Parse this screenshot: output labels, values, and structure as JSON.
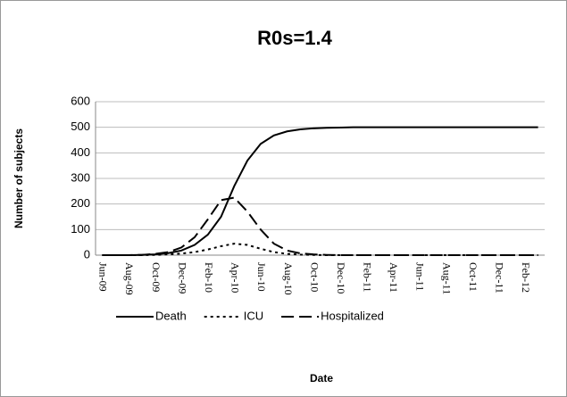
{
  "chart_data": {
    "type": "line",
    "title": "R0s=1.4",
    "x_label": "Date",
    "y_label": "Number of subjects",
    "categories": [
      "Jun-09",
      null,
      "Aug-09",
      null,
      "Oct-09",
      null,
      "Dec-09",
      null,
      "Feb-10",
      null,
      "Apr-10",
      null,
      "Jun-10",
      null,
      "Aug-10",
      null,
      "Oct-10",
      null,
      "Dec-10",
      null,
      "Feb-11",
      null,
      "Apr-11",
      null,
      "Jun-11",
      null,
      "Aug-11",
      null,
      "Oct-11",
      null,
      "Dec-11",
      null,
      "Feb-12",
      null
    ],
    "series": [
      {
        "name": "Death",
        "color": "#000000",
        "dash": "solid",
        "values": [
          0,
          0,
          0,
          1,
          3,
          8,
          18,
          40,
          80,
          150,
          270,
          370,
          435,
          468,
          484,
          492,
          496,
          498,
          499,
          500,
          500,
          500,
          500,
          500,
          500,
          500,
          500,
          500,
          500,
          500,
          500,
          500,
          500,
          500
        ]
      },
      {
        "name": "ICU",
        "color": "#000000",
        "dash": "short",
        "values": [
          0,
          0,
          0,
          0,
          1,
          3,
          6,
          12,
          22,
          35,
          45,
          40,
          25,
          12,
          5,
          2,
          1,
          0,
          0,
          0,
          0,
          0,
          0,
          0,
          0,
          0,
          0,
          0,
          0,
          0,
          0,
          0,
          0,
          0
        ]
      },
      {
        "name": "Hospitalized",
        "color": "#000000",
        "dash": "long",
        "values": [
          0,
          0,
          0,
          1,
          5,
          12,
          30,
          70,
          140,
          215,
          225,
          170,
          100,
          45,
          18,
          7,
          3,
          1,
          0,
          0,
          0,
          0,
          0,
          0,
          0,
          0,
          0,
          0,
          0,
          0,
          0,
          0,
          0,
          0
        ]
      }
    ],
    "ylim": [
      0,
      600
    ],
    "yticks": [
      0,
      100,
      200,
      300,
      400,
      500,
      600
    ],
    "grid": true,
    "legend": "bottom"
  }
}
